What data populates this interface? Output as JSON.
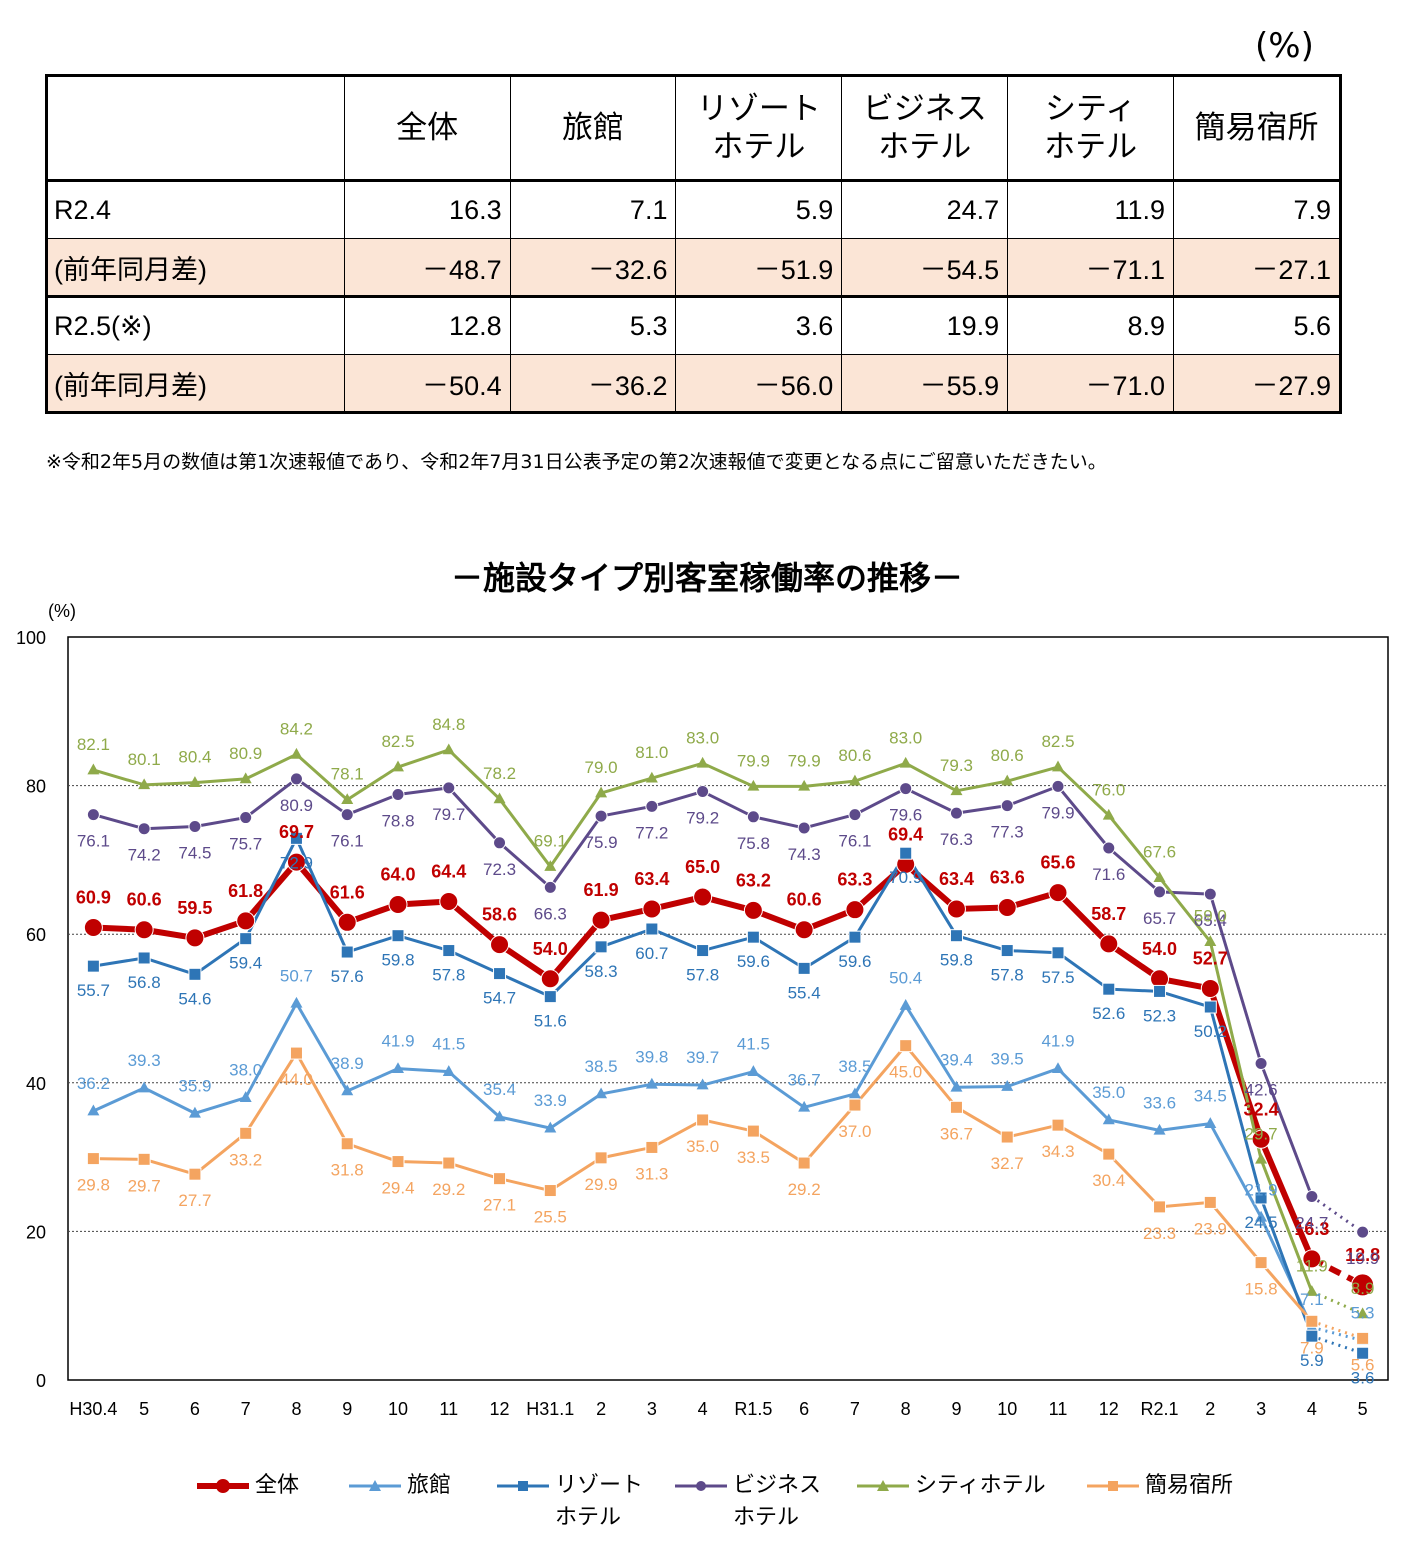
{
  "table": {
    "unit": "(%)",
    "headers": [
      "",
      "全体",
      "旅館",
      "リゾート\nホテル",
      "ビジネス\nホテル",
      "シティ\nホテル",
      "簡易宿所"
    ],
    "rows": [
      {
        "label": "R2.4",
        "values": [
          "16.3",
          "7.1",
          "5.9",
          "24.7",
          "11.9",
          "7.9"
        ],
        "highlight": false
      },
      {
        "label": "(前年同月差)",
        "values": [
          "－48.7",
          "－32.6",
          "－51.9",
          "－54.5",
          "－71.1",
          "－27.1"
        ],
        "highlight": true
      },
      {
        "label": "R2.5(※)",
        "values": [
          "12.8",
          "5.3",
          "3.6",
          "19.9",
          "8.9",
          "5.6"
        ],
        "highlight": false
      },
      {
        "label": "(前年同月差)",
        "values": [
          "－50.4",
          "－36.2",
          "－56.0",
          "－55.9",
          "－71.0",
          "－27.9"
        ],
        "highlight": true
      }
    ],
    "note": "※令和2年5月の数値は第1次速報値であり、令和2年7月31日公表予定の第2次速報値で変更となる点にご留意いただきたい。"
  },
  "chart_data": {
    "type": "line",
    "title": "－施設タイプ別客室稼働率の推移－",
    "ylabel": "(%)",
    "ylim": [
      0,
      100
    ],
    "yticks": [
      0,
      20,
      40,
      60,
      80,
      100
    ],
    "grid": "horizontal-dotted",
    "categories": [
      "H30.4",
      "5",
      "6",
      "7",
      "8",
      "9",
      "10",
      "11",
      "12",
      "H31.1",
      "2",
      "3",
      "4",
      "R1.5",
      "6",
      "7",
      "8",
      "9",
      "10",
      "11",
      "12",
      "R2.1",
      "2",
      "3",
      "4",
      "5"
    ],
    "series": [
      {
        "name": "全体",
        "color": "#c00000",
        "marker": "circle",
        "values": [
          60.9,
          60.6,
          59.5,
          61.8,
          69.7,
          61.6,
          64.0,
          64.4,
          58.6,
          54.0,
          61.9,
          63.4,
          65.0,
          63.2,
          60.6,
          63.3,
          69.4,
          63.4,
          63.6,
          65.6,
          58.7,
          54.0,
          52.7,
          32.4,
          16.3,
          12.8
        ]
      },
      {
        "name": "旅館",
        "color": "#5b9bd5",
        "marker": "triangle",
        "values": [
          36.2,
          39.3,
          35.9,
          38.0,
          50.7,
          38.9,
          41.9,
          41.5,
          35.4,
          33.9,
          38.5,
          39.8,
          39.7,
          41.5,
          36.7,
          38.5,
          50.4,
          39.4,
          39.5,
          41.9,
          35.0,
          33.6,
          34.5,
          21.9,
          7.1,
          5.3
        ]
      },
      {
        "name": "リゾート\nホテル",
        "color": "#2e75b6",
        "marker": "square",
        "values": [
          55.7,
          56.8,
          54.6,
          59.4,
          72.9,
          57.6,
          59.8,
          57.8,
          54.7,
          51.6,
          58.3,
          60.7,
          57.8,
          59.6,
          55.4,
          59.6,
          70.9,
          59.8,
          57.8,
          57.5,
          52.6,
          52.3,
          50.2,
          24.5,
          5.9,
          3.6
        ]
      },
      {
        "name": "ビジネス\nホテル",
        "color": "#5d4a8a",
        "marker": "circle",
        "values": [
          76.1,
          74.2,
          74.5,
          75.7,
          80.9,
          76.1,
          78.8,
          79.7,
          72.3,
          66.3,
          75.9,
          77.2,
          79.2,
          75.8,
          74.3,
          76.1,
          79.6,
          76.3,
          77.3,
          79.9,
          71.6,
          65.7,
          65.4,
          42.6,
          24.7,
          19.9
        ]
      },
      {
        "name": "シティホテル",
        "color": "#8faa4a",
        "marker": "triangle",
        "values": [
          82.1,
          80.1,
          80.4,
          80.9,
          84.2,
          78.1,
          82.5,
          84.8,
          78.2,
          69.1,
          79.0,
          81.0,
          83.0,
          79.9,
          79.9,
          80.6,
          83.0,
          79.3,
          80.6,
          82.5,
          76.0,
          67.6,
          59.0,
          29.7,
          11.9,
          8.9
        ]
      },
      {
        "name": "簡易宿所",
        "color": "#f4a460",
        "marker": "square",
        "values": [
          29.8,
          29.7,
          27.7,
          33.2,
          44.0,
          31.8,
          29.4,
          29.2,
          27.1,
          25.5,
          29.9,
          31.3,
          35.0,
          33.5,
          29.2,
          37.0,
          45.0,
          36.7,
          32.7,
          34.3,
          30.4,
          23.3,
          23.9,
          15.8,
          7.9,
          5.6
        ]
      }
    ],
    "last_segment_style": "dotted"
  }
}
